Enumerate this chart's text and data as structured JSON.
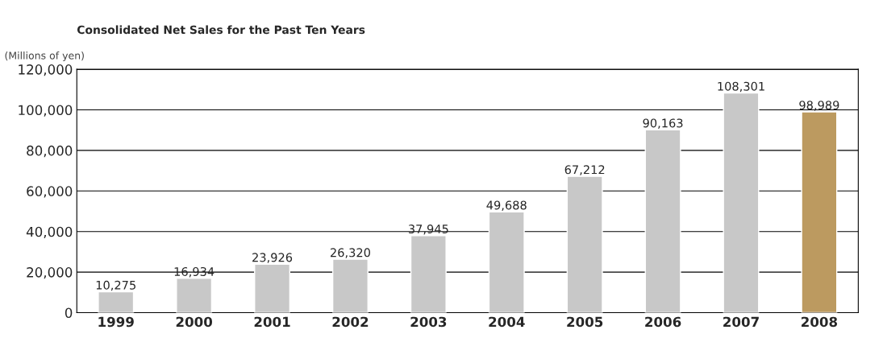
{
  "chart_data": {
    "type": "bar",
    "title": "Consolidated Net Sales for the Past Ten Years",
    "ylabel": "(Millions of yen)",
    "categories": [
      "1999",
      "2000",
      "2001",
      "2002",
      "2003",
      "2004",
      "2005",
      "2006",
      "2007",
      "2008"
    ],
    "values": [
      10275,
      16934,
      23926,
      26320,
      37945,
      49688,
      67212,
      90163,
      108301,
      98989
    ],
    "colors": [
      "#c8c8c8",
      "#c8c8c8",
      "#c8c8c8",
      "#c8c8c8",
      "#c8c8c8",
      "#c8c8c8",
      "#c8c8c8",
      "#c8c8c8",
      "#c8c8c8",
      "#cc9e50"
    ],
    "value_labels": [
      "10,275",
      "16,934",
      "23,926",
      "26,320",
      "37,945",
      "49,688",
      "67,212",
      "90,163",
      "108,301",
      "98,989"
    ],
    "ylim": [
      0,
      120000
    ],
    "yticks": [
      0,
      {
        "value": 20000,
        "label": "20,000"
      },
      {
        "value": 40000,
        "label": "40,000"
      },
      {
        "value": 60000,
        "label": "60,000"
      },
      {
        "value": 80000,
        "label": "80,000"
      },
      {
        "value": 100000,
        "label": "100,000"
      },
      {
        "value": 120000,
        "label": "120,000"
      }
    ],
    "grid": "y"
  }
}
